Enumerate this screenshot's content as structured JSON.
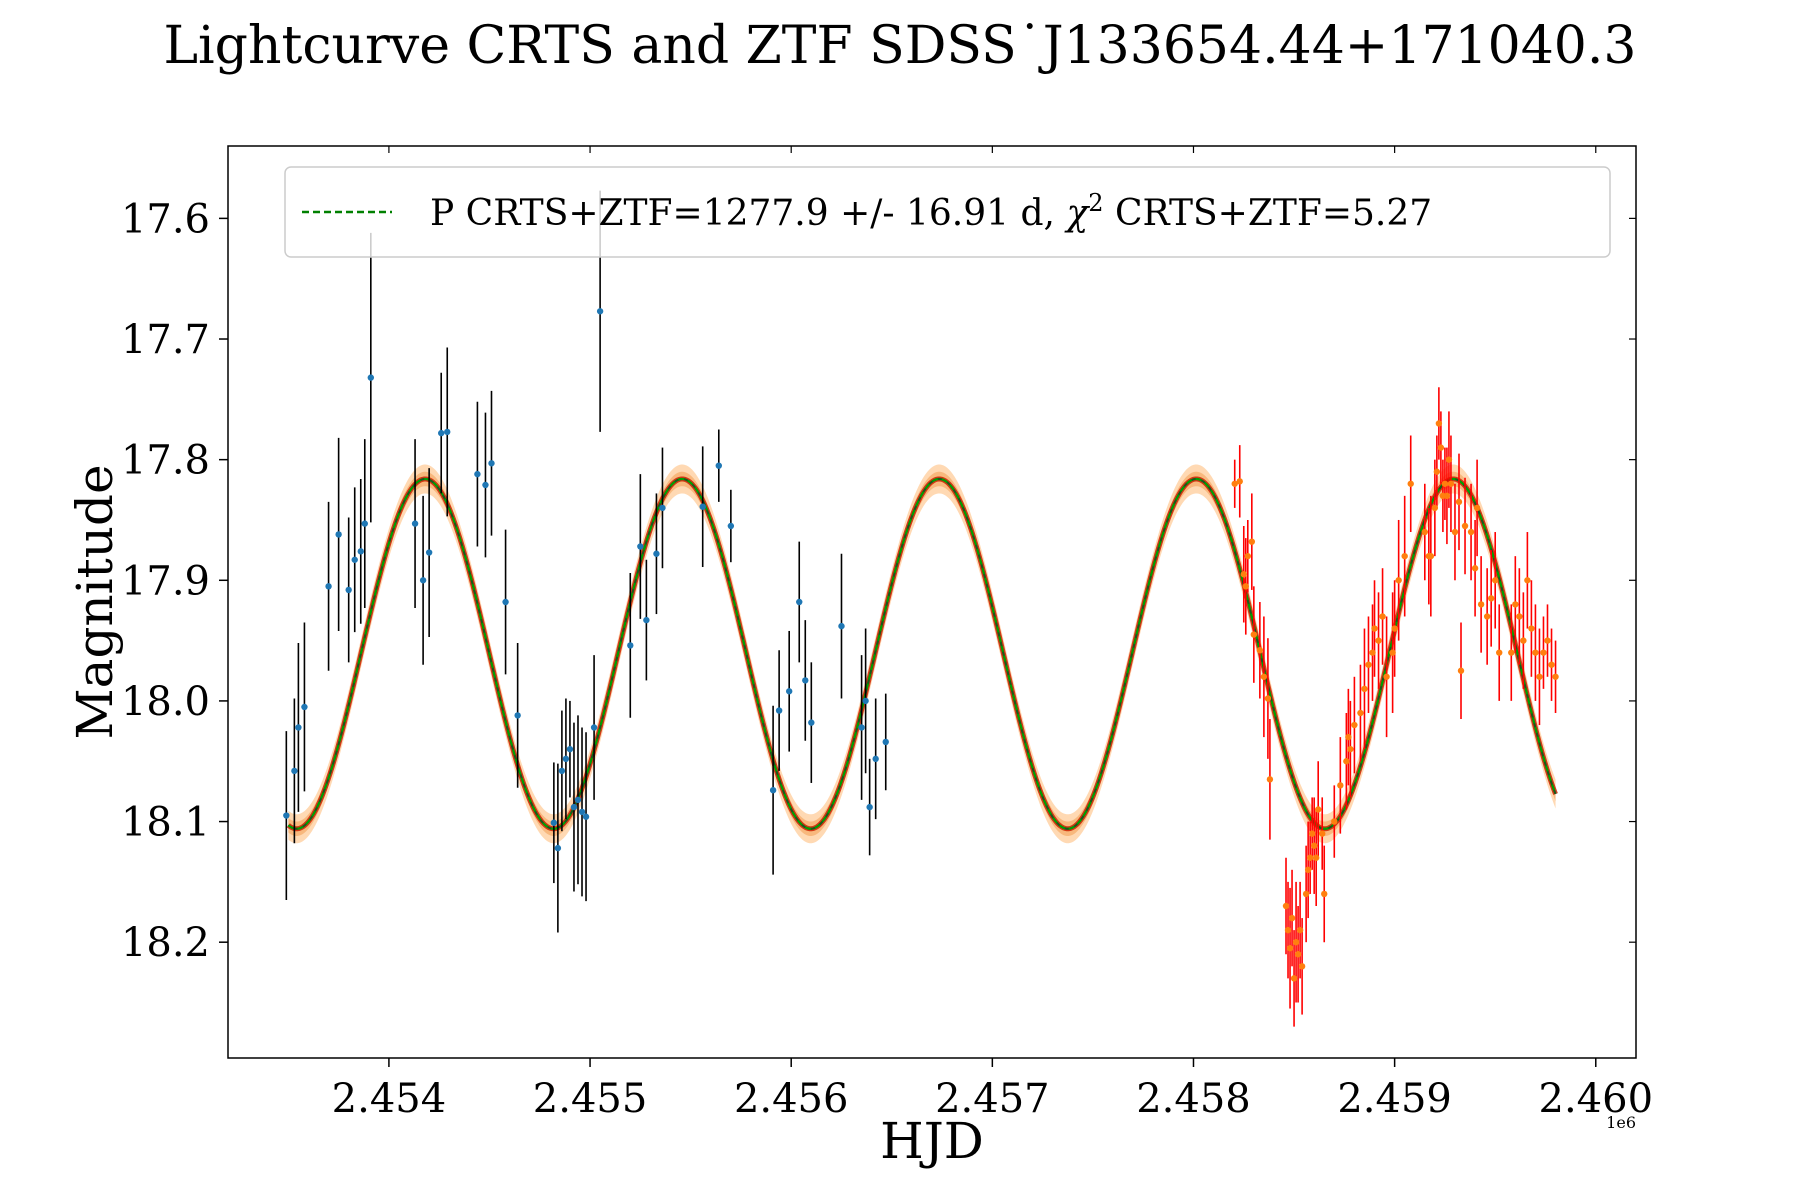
{
  "chart_data": {
    "type": "scatter",
    "title": "Lightcurve CRTS and ZTF SDSS˙J133654.44+171040.3",
    "xlabel": "HJD",
    "ylabel": "Magnitude",
    "x_offset_label": "1e6",
    "xlim": [
      2453200,
      2460200
    ],
    "ylim": [
      18.296,
      17.54
    ],
    "y_inverted": true,
    "x_ticks": [
      2454000,
      2455000,
      2456000,
      2457000,
      2458000,
      2459000,
      2460000
    ],
    "x_tick_labels": [
      "2.454",
      "2.455",
      "2.456",
      "2.457",
      "2.458",
      "2.459",
      "2.460"
    ],
    "y_ticks": [
      17.6,
      17.7,
      17.8,
      17.9,
      18.0,
      18.1,
      18.2
    ],
    "y_tick_labels": [
      "17.6",
      "17.7",
      "17.8",
      "17.9",
      "18.0",
      "18.1",
      "18.2"
    ],
    "legend": {
      "position": "top",
      "label_main": "P CRTS+ZTF=1277.9 +/- 16.91 d, ",
      "label_chi": "χ",
      "label_sup": "2",
      "label_rest": " CRTS+ZTF=5.27"
    },
    "model": {
      "name": "P CRTS+ZTF=1277.9 +/- 16.91 d",
      "period": 1277.9,
      "period_err": 16.91,
      "chi2": 5.27,
      "mean_mag": 17.961,
      "amplitude": 0.145,
      "peak_hjd": 2454180,
      "x_start": 2453500,
      "x_end": 2459800
    },
    "series": [
      {
        "name": "CRTS",
        "color": "#1f77b4",
        "errcolor": "#000000",
        "points": [
          [
            2453490,
            18.095,
            0.07
          ],
          [
            2453530,
            18.058,
            0.06
          ],
          [
            2453550,
            18.022,
            0.07
          ],
          [
            2453580,
            18.005,
            0.07
          ],
          [
            2453700,
            17.905,
            0.07
          ],
          [
            2453750,
            17.862,
            0.08
          ],
          [
            2453800,
            17.908,
            0.06
          ],
          [
            2453830,
            17.883,
            0.06
          ],
          [
            2453860,
            17.876,
            0.06
          ],
          [
            2453880,
            17.853,
            0.07
          ],
          [
            2453910,
            17.732,
            0.12
          ],
          [
            2454130,
            17.853,
            0.07
          ],
          [
            2454170,
            17.9,
            0.07
          ],
          [
            2454200,
            17.877,
            0.07
          ],
          [
            2454260,
            17.778,
            0.05
          ],
          [
            2454290,
            17.777,
            0.07
          ],
          [
            2454440,
            17.812,
            0.06
          ],
          [
            2454480,
            17.821,
            0.06
          ],
          [
            2454510,
            17.803,
            0.06
          ],
          [
            2454580,
            17.918,
            0.06
          ],
          [
            2454640,
            18.012,
            0.06
          ],
          [
            2454820,
            18.101,
            0.05
          ],
          [
            2454840,
            18.122,
            0.07
          ],
          [
            2454860,
            18.058,
            0.05
          ],
          [
            2454880,
            18.048,
            0.05
          ],
          [
            2454900,
            18.04,
            0.04
          ],
          [
            2454920,
            18.088,
            0.07
          ],
          [
            2454940,
            18.082,
            0.07
          ],
          [
            2454960,
            18.092,
            0.07
          ],
          [
            2454980,
            18.096,
            0.07
          ],
          [
            2455020,
            18.022,
            0.06
          ],
          [
            2455050,
            17.677,
            0.1
          ],
          [
            2455200,
            17.954,
            0.06
          ],
          [
            2455250,
            17.872,
            0.06
          ],
          [
            2455280,
            17.933,
            0.05
          ],
          [
            2455330,
            17.878,
            0.05
          ],
          [
            2455360,
            17.84,
            0.05
          ],
          [
            2455560,
            17.839,
            0.05
          ],
          [
            2455640,
            17.805,
            0.03
          ],
          [
            2455700,
            17.855,
            0.03
          ],
          [
            2455910,
            18.074,
            0.07
          ],
          [
            2455940,
            18.008,
            0.05
          ],
          [
            2455990,
            17.992,
            0.05
          ],
          [
            2456040,
            17.918,
            0.05
          ],
          [
            2456070,
            17.983,
            0.05
          ],
          [
            2456100,
            18.018,
            0.05
          ],
          [
            2456250,
            17.938,
            0.06
          ],
          [
            2456350,
            18.022,
            0.06
          ],
          [
            2456370,
            18.0,
            0.06
          ],
          [
            2456390,
            18.088,
            0.04
          ],
          [
            2456420,
            18.048,
            0.05
          ],
          [
            2456470,
            18.034,
            0.04
          ]
        ]
      },
      {
        "name": "ZTF",
        "color": "#ff7f0e",
        "errcolor": "#ff0000",
        "points": [
          [
            2458205,
            17.82,
            0.02
          ],
          [
            2458230,
            17.818,
            0.03
          ],
          [
            2458250,
            17.895,
            0.04
          ],
          [
            2458260,
            17.905,
            0.04
          ],
          [
            2458270,
            17.88,
            0.03
          ],
          [
            2458290,
            17.868,
            0.04
          ],
          [
            2458300,
            17.945,
            0.04
          ],
          [
            2458330,
            17.958,
            0.04
          ],
          [
            2458350,
            17.98,
            0.05
          ],
          [
            2458370,
            17.998,
            0.05
          ],
          [
            2458380,
            18.065,
            0.05
          ],
          [
            2458460,
            18.17,
            0.04
          ],
          [
            2458470,
            18.19,
            0.04
          ],
          [
            2458480,
            18.205,
            0.05
          ],
          [
            2458490,
            18.18,
            0.04
          ],
          [
            2458500,
            18.23,
            0.04
          ],
          [
            2458510,
            18.2,
            0.05
          ],
          [
            2458520,
            18.21,
            0.04
          ],
          [
            2458530,
            18.19,
            0.04
          ],
          [
            2458540,
            18.22,
            0.04
          ],
          [
            2458560,
            18.16,
            0.04
          ],
          [
            2458570,
            18.14,
            0.04
          ],
          [
            2458580,
            18.13,
            0.03
          ],
          [
            2458590,
            18.11,
            0.03
          ],
          [
            2458600,
            18.12,
            0.04
          ],
          [
            2458610,
            18.13,
            0.04
          ],
          [
            2458620,
            18.09,
            0.04
          ],
          [
            2458640,
            18.11,
            0.03
          ],
          [
            2458650,
            18.16,
            0.04
          ],
          [
            2458700,
            18.1,
            0.03
          ],
          [
            2458730,
            18.07,
            0.04
          ],
          [
            2458760,
            18.05,
            0.04
          ],
          [
            2458770,
            18.03,
            0.04
          ],
          [
            2458780,
            18.04,
            0.04
          ],
          [
            2458800,
            18.02,
            0.04
          ],
          [
            2458830,
            18.01,
            0.04
          ],
          [
            2458850,
            17.99,
            0.05
          ],
          [
            2458870,
            17.97,
            0.04
          ],
          [
            2458890,
            17.96,
            0.04
          ],
          [
            2458900,
            17.94,
            0.04
          ],
          [
            2458920,
            17.95,
            0.04
          ],
          [
            2458940,
            17.93,
            0.04
          ],
          [
            2458960,
            17.98,
            0.05
          ],
          [
            2458990,
            17.96,
            0.05
          ],
          [
            2459000,
            17.94,
            0.04
          ],
          [
            2459020,
            17.9,
            0.05
          ],
          [
            2459050,
            17.88,
            0.05
          ],
          [
            2459080,
            17.82,
            0.04
          ],
          [
            2459150,
            17.86,
            0.04
          ],
          [
            2459170,
            17.88,
            0.04
          ],
          [
            2459180,
            17.88,
            0.05
          ],
          [
            2459200,
            17.84,
            0.04
          ],
          [
            2459210,
            17.81,
            0.03
          ],
          [
            2459220,
            17.77,
            0.03
          ],
          [
            2459230,
            17.79,
            0.03
          ],
          [
            2459240,
            17.83,
            0.03
          ],
          [
            2459250,
            17.82,
            0.03
          ],
          [
            2459260,
            17.83,
            0.04
          ],
          [
            2459270,
            17.8,
            0.04
          ],
          [
            2459280,
            17.82,
            0.04
          ],
          [
            2459300,
            17.86,
            0.04
          ],
          [
            2459320,
            17.835,
            0.04
          ],
          [
            2459330,
            17.975,
            0.04
          ],
          [
            2459350,
            17.855,
            0.04
          ],
          [
            2459380,
            17.86,
            0.04
          ],
          [
            2459400,
            17.89,
            0.04
          ],
          [
            2459410,
            17.84,
            0.04
          ],
          [
            2459430,
            17.92,
            0.04
          ],
          [
            2459460,
            17.93,
            0.04
          ],
          [
            2459480,
            17.915,
            0.04
          ],
          [
            2459500,
            17.9,
            0.04
          ],
          [
            2459520,
            17.96,
            0.04
          ],
          [
            2459580,
            17.96,
            0.04
          ],
          [
            2459600,
            17.92,
            0.04
          ],
          [
            2459620,
            17.93,
            0.04
          ],
          [
            2459640,
            17.95,
            0.04
          ],
          [
            2459660,
            17.9,
            0.04
          ],
          [
            2459680,
            17.94,
            0.04
          ],
          [
            2459700,
            17.96,
            0.04
          ],
          [
            2459720,
            17.98,
            0.04
          ],
          [
            2459740,
            17.96,
            0.03
          ],
          [
            2459760,
            17.95,
            0.03
          ],
          [
            2459780,
            17.97,
            0.03
          ],
          [
            2459800,
            17.98,
            0.03
          ]
        ]
      }
    ]
  }
}
